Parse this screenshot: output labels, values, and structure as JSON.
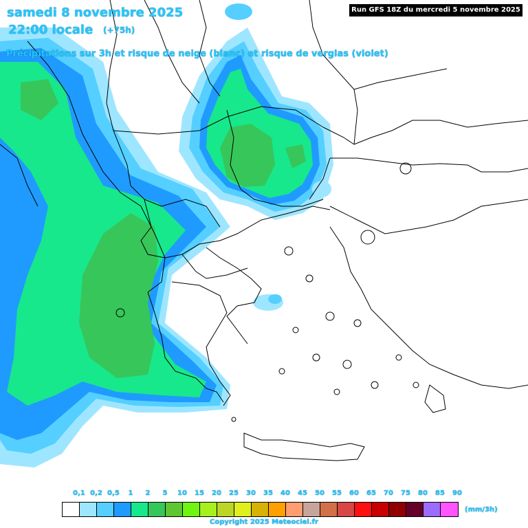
{
  "header": {
    "date": "samedi 8 novembre 2025",
    "time": "22:00 locale",
    "lead": "(+75h)",
    "subtitle": "Précipitations sur 3h et risque de neige (blanc) et risque de verglas (violet)",
    "run": "Run GFS 18Z du mercredi 5 novembre 2025"
  },
  "legend": {
    "unit": "(mm/3h)",
    "ticks": [
      "0,1",
      "0,2",
      "0,5",
      "1",
      "2",
      "5",
      "10",
      "15",
      "20",
      "25",
      "30",
      "35",
      "40",
      "45",
      "50",
      "55",
      "60",
      "65",
      "70",
      "75",
      "80",
      "85",
      "90"
    ],
    "colors": [
      "#ffffff",
      "#9ee6ff",
      "#55cfff",
      "#1f9bff",
      "#17e88c",
      "#37c65a",
      "#5ec632",
      "#6ff50f",
      "#a7f01e",
      "#bcd628",
      "#e0f01f",
      "#d7b106",
      "#ff9f00",
      "#ff9e70",
      "#c8a49a",
      "#d27048",
      "#d94646",
      "#ff1010",
      "#c80000",
      "#900000",
      "#660029",
      "#9c6cff",
      "#ff55ff"
    ]
  },
  "map_layers": {
    "precip_colors": {
      "light": "#9ee6ff",
      "moderate": "#55cfff",
      "blue": "#1f9bff",
      "green": "#17e88c",
      "dark_green": "#37c65a"
    },
    "line_color": "#000000"
  },
  "footer": {
    "copyright": "Copyright 2025 Meteociel.fr"
  }
}
